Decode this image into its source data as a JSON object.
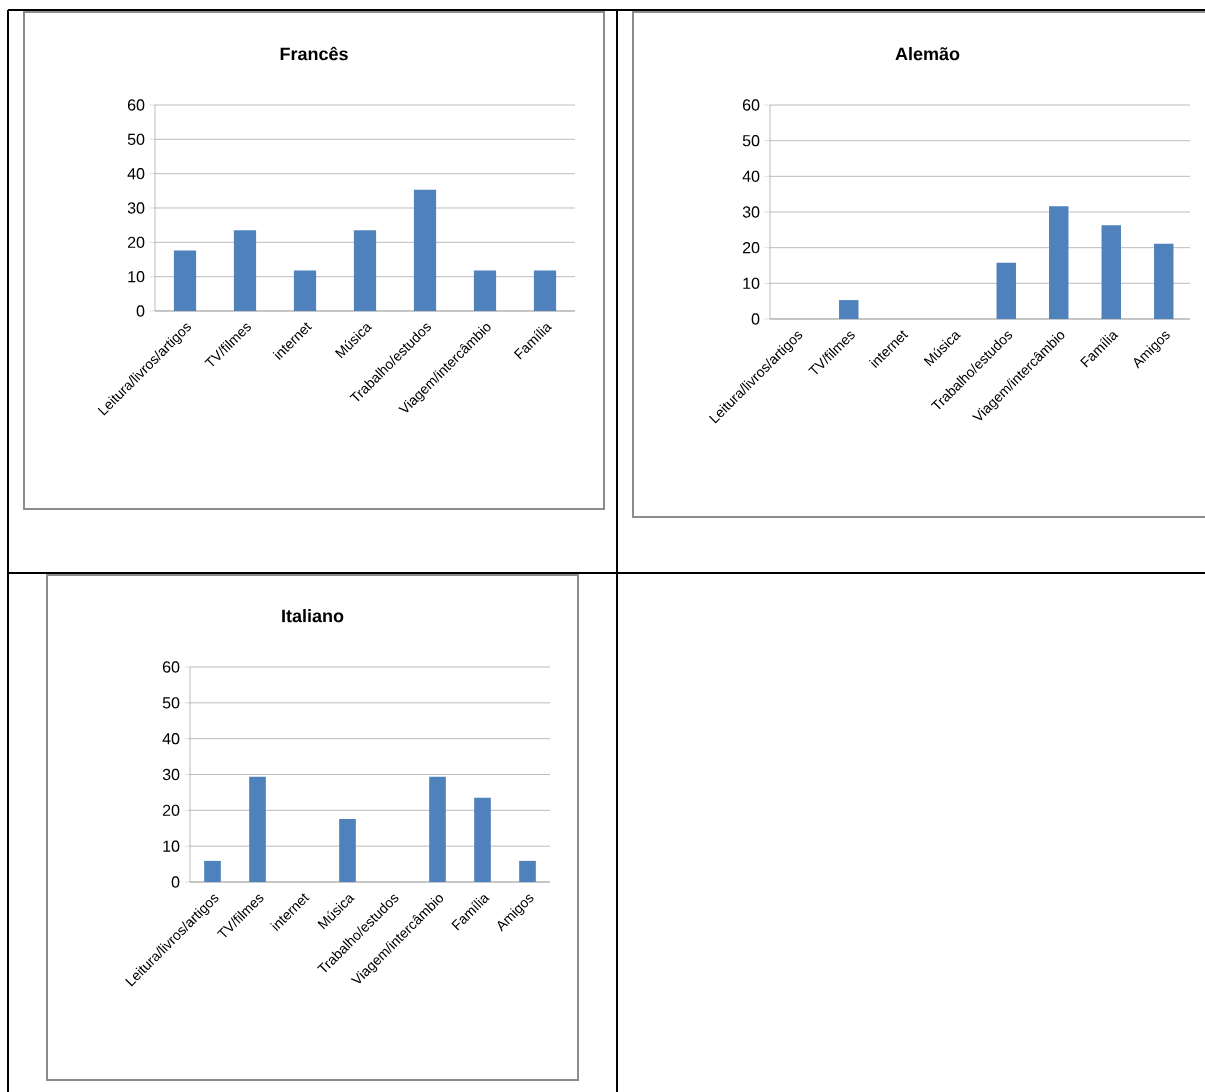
{
  "chart_data": [
    {
      "type": "bar",
      "title": "Francês",
      "categories": [
        "Leitura/livros/artigos",
        "TV/filmes",
        "internet",
        "Música",
        "Trabalho/estudos",
        "Viagem/intercâmbio",
        "Família"
      ],
      "values": [
        17.6,
        23.5,
        11.8,
        23.5,
        35.3,
        11.8,
        11.8
      ],
      "color": "#4f81bd",
      "ylim": [
        0,
        60
      ],
      "yticks": [
        0,
        10,
        20,
        30,
        40,
        50,
        60
      ],
      "grid": "y"
    },
    {
      "type": "bar",
      "title": "Alemão",
      "categories": [
        "Leitura/livros/artigos",
        "TV/filmes",
        "internet",
        "Música",
        "Trabalho/estudos",
        "Viagem/intercâmbio",
        "Família",
        "Amigos"
      ],
      "values": [
        0,
        5.3,
        0,
        0,
        15.8,
        31.6,
        26.3,
        21.1
      ],
      "color": "#4f81bd",
      "ylim": [
        0,
        60
      ],
      "yticks": [
        0,
        10,
        20,
        30,
        40,
        50,
        60
      ],
      "grid": "y"
    },
    {
      "type": "bar",
      "title": "Italiano",
      "categories": [
        "Leitura/livros/artigos",
        "TV/filmes",
        "internet",
        "Música",
        "Trabalho/estudos",
        "Viagem/intercâmbio",
        "Família",
        "Amigos"
      ],
      "values": [
        5.9,
        29.4,
        0,
        17.6,
        0,
        29.4,
        23.5,
        5.9
      ],
      "color": "#4f81bd",
      "ylim": [
        0,
        60
      ],
      "yticks": [
        0,
        10,
        20,
        30,
        40,
        50,
        60
      ],
      "grid": "y"
    }
  ]
}
